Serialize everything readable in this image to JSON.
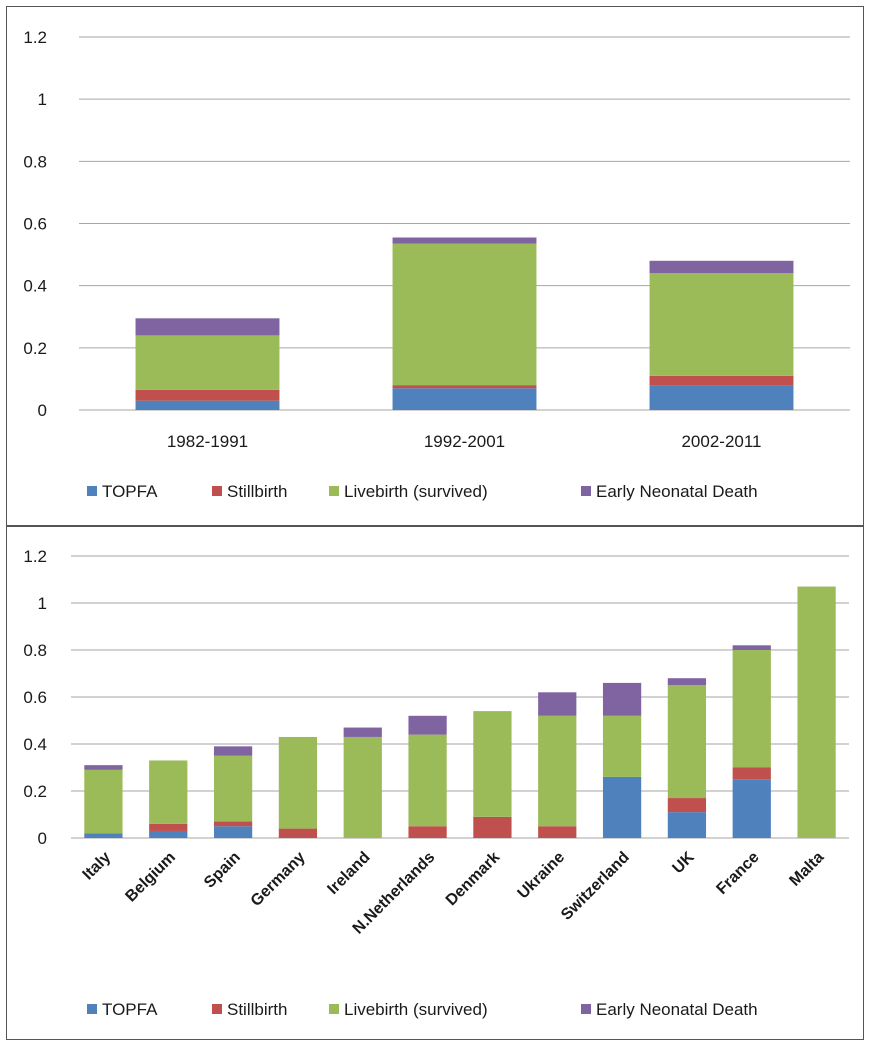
{
  "colors": {
    "TOPFA": "#4f81bd",
    "Stillbirth": "#c0504d",
    "Livebirth (survived)": "#9bbb59",
    "Early Neonatal Death": "#8064a2",
    "grid": "#a6a6a6",
    "border": "#555555"
  },
  "chart_data": [
    {
      "type": "bar",
      "stacked": true,
      "title": "",
      "xlabel": "",
      "ylabel": "",
      "ylim": [
        0,
        1.2
      ],
      "yticks": [
        "0",
        "0.2",
        "0.4",
        "0.6",
        "0.8",
        "1",
        "1.2"
      ],
      "ytick_values": [
        0,
        0.2,
        0.4,
        0.6,
        0.8,
        1,
        1.2
      ],
      "grid": true,
      "legend_position": "bottom",
      "categories": [
        "1982-1991",
        "1992-2001",
        "2002-2011"
      ],
      "series": [
        {
          "name": "TOPFA",
          "values": [
            0.03,
            0.07,
            0.08
          ]
        },
        {
          "name": "Stillbirth",
          "values": [
            0.035,
            0.01,
            0.03
          ]
        },
        {
          "name": "Livebirth (survived)",
          "values": [
            0.175,
            0.455,
            0.33
          ]
        },
        {
          "name": "Early Neonatal Death",
          "values": [
            0.055,
            0.02,
            0.04
          ]
        }
      ]
    },
    {
      "type": "bar",
      "stacked": true,
      "title": "",
      "xlabel": "",
      "ylabel": "",
      "ylim": [
        0,
        1.2
      ],
      "yticks": [
        "0",
        "0.2",
        "0.4",
        "0.6",
        "0.8",
        "1",
        "1.2"
      ],
      "ytick_values": [
        0,
        0.2,
        0.4,
        0.6,
        0.8,
        1,
        1.2
      ],
      "grid": true,
      "legend_position": "bottom",
      "categories": [
        "Italy",
        "Belgium",
        "Spain",
        "Germany",
        "Ireland",
        "N.Netherlands",
        "Denmark",
        "Ukraine",
        "Switzerland",
        "UK",
        "France",
        "Malta"
      ],
      "series": [
        {
          "name": "TOPFA",
          "values": [
            0.02,
            0.03,
            0.05,
            0.0,
            0.0,
            0.0,
            0.0,
            0.0,
            0.26,
            0.11,
            0.25,
            0.0
          ]
        },
        {
          "name": "Stillbirth",
          "values": [
            0.0,
            0.03,
            0.02,
            0.04,
            0.0,
            0.05,
            0.09,
            0.05,
            0.0,
            0.06,
            0.05,
            0.0
          ]
        },
        {
          "name": "Livebirth (survived)",
          "values": [
            0.27,
            0.27,
            0.28,
            0.39,
            0.43,
            0.39,
            0.45,
            0.47,
            0.26,
            0.48,
            0.5,
            1.07
          ]
        },
        {
          "name": "Early Neonatal Death",
          "values": [
            0.02,
            0.0,
            0.04,
            0.0,
            0.04,
            0.08,
            0.0,
            0.1,
            0.14,
            0.03,
            0.02,
            0.0
          ]
        }
      ]
    }
  ]
}
